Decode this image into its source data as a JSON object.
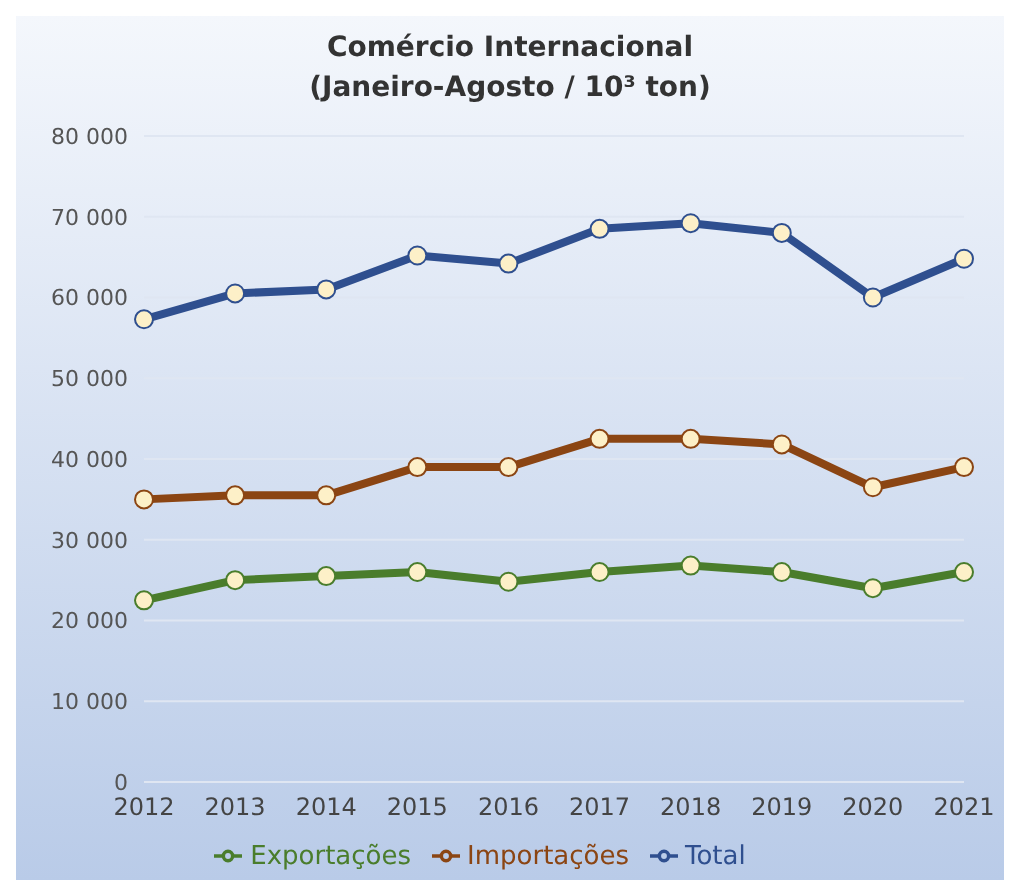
{
  "chart_data": {
    "type": "line",
    "title": "Comércio Internacional\n(Janeiro-Agosto / 10³ ton)",
    "categories": [
      "2012",
      "2013",
      "2014",
      "2015",
      "2016",
      "2017",
      "2018",
      "2019",
      "2020",
      "2021"
    ],
    "series": [
      {
        "name": "Importações",
        "color": "#8b4513",
        "values": [
          35000,
          35500,
          35500,
          39000,
          39000,
          42500,
          42500,
          41800,
          36500,
          39000
        ]
      },
      {
        "name": "Exportações",
        "color": "#4a7d2c",
        "values": [
          22500,
          25000,
          25500,
          26000,
          24800,
          26000,
          26800,
          26000,
          24000,
          26000
        ]
      },
      {
        "name": "Total",
        "color": "#2f4f8f",
        "values": [
          57300,
          60500,
          61000,
          65200,
          64200,
          68500,
          69200,
          68000,
          60000,
          64800
        ]
      }
    ],
    "ylim": [
      0,
      80000
    ],
    "yticks": [
      0,
      {
        "value": 10000,
        "label": "10 000"
      },
      {
        "value": 20000,
        "label": "20 000"
      },
      {
        "value": 30000,
        "label": "30 000"
      },
      {
        "value": 40000,
        "label": "40 000"
      },
      {
        "value": 50000,
        "label": "50 000"
      },
      {
        "value": 60000,
        "label": "60 000"
      },
      {
        "value": 70000,
        "label": "70 000"
      },
      {
        "value": 80000,
        "label": "80 000"
      }
    ],
    "grid": "y",
    "legend": "bottom",
    "marker": "circle"
  }
}
